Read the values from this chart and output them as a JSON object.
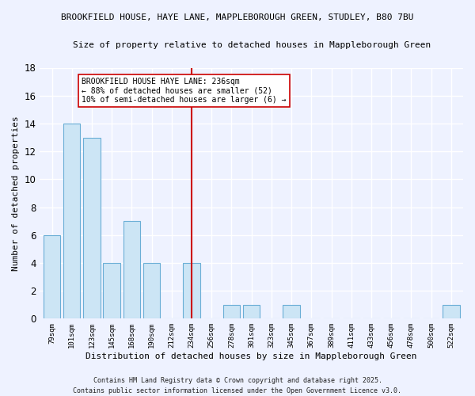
{
  "title": "BROOKFIELD HOUSE, HAYE LANE, MAPPLEBOROUGH GREEN, STUDLEY, B80 7BU",
  "subtitle": "Size of property relative to detached houses in Mappleborough Green",
  "xlabel": "Distribution of detached houses by size in Mappleborough Green",
  "ylabel": "Number of detached properties",
  "categories": [
    "79sqm",
    "101sqm",
    "123sqm",
    "145sqm",
    "168sqm",
    "190sqm",
    "212sqm",
    "234sqm",
    "256sqm",
    "278sqm",
    "301sqm",
    "323sqm",
    "345sqm",
    "367sqm",
    "389sqm",
    "411sqm",
    "433sqm",
    "456sqm",
    "478sqm",
    "500sqm",
    "522sqm"
  ],
  "values": [
    6,
    14,
    13,
    4,
    7,
    4,
    0,
    4,
    0,
    1,
    1,
    0,
    1,
    0,
    0,
    0,
    0,
    0,
    0,
    0,
    1
  ],
  "bar_color": "#cce5f5",
  "bar_edge_color": "#6aaed6",
  "marker_index": 7,
  "marker_color": "#cc0000",
  "annotation_title": "BROOKFIELD HOUSE HAYE LANE: 236sqm",
  "annotation_line1": "← 88% of detached houses are smaller (52)",
  "annotation_line2": "10% of semi-detached houses are larger (6) →",
  "annotation_box_color": "#ffffff",
  "annotation_box_edge_color": "#cc0000",
  "ylim": [
    0,
    18
  ],
  "yticks": [
    0,
    2,
    4,
    6,
    8,
    10,
    12,
    14,
    16,
    18
  ],
  "background_color": "#eef2ff",
  "grid_color": "#ffffff",
  "footer": "Contains HM Land Registry data © Crown copyright and database right 2025.\nContains public sector information licensed under the Open Government Licence v3.0."
}
